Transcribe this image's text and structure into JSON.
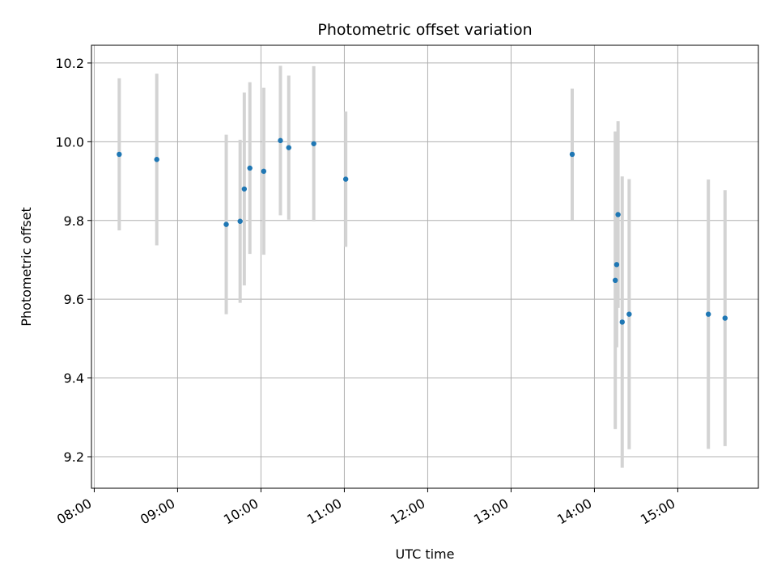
{
  "chart_data": {
    "type": "scatter",
    "title": "Photometric offset variation",
    "xlabel": "UTC time",
    "ylabel": "Photometric offset",
    "x_ticks": [
      "08:00",
      "09:00",
      "10:00",
      "11:00",
      "12:00",
      "13:00",
      "14:00",
      "15:00"
    ],
    "y_ticks": [
      9.2,
      9.4,
      9.6,
      9.8,
      10.0,
      10.2
    ],
    "y_tick_labels": [
      "9.2",
      "9.4",
      "9.6",
      "9.8",
      "10.0",
      "10.2"
    ],
    "xlim": [
      "07:58",
      "15:58"
    ],
    "ylim": [
      9.12,
      10.245
    ],
    "grid": true,
    "marker_color": "#1f77b4",
    "errorbar_color": "#d3d3d3",
    "points": [
      {
        "x": "08:18",
        "y": 9.968,
        "err": 0.193
      },
      {
        "x": "08:45",
        "y": 9.955,
        "err": 0.218
      },
      {
        "x": "09:35",
        "y": 9.79,
        "err": 0.228
      },
      {
        "x": "09:45",
        "y": 9.798,
        "err": 0.207
      },
      {
        "x": "09:48",
        "y": 9.88,
        "err": 0.245
      },
      {
        "x": "09:52",
        "y": 9.933,
        "err": 0.218
      },
      {
        "x": "10:02",
        "y": 9.925,
        "err": 0.212
      },
      {
        "x": "10:14",
        "y": 10.003,
        "err": 0.19
      },
      {
        "x": "10:20",
        "y": 9.985,
        "err": 0.183
      },
      {
        "x": "10:38",
        "y": 9.995,
        "err": 0.197
      },
      {
        "x": "11:01",
        "y": 9.905,
        "err": 0.172
      },
      {
        "x": "13:44",
        "y": 9.968,
        "err": 0.167
      },
      {
        "x": "14:15",
        "y": 9.648,
        "err": 0.378
      },
      {
        "x": "14:16",
        "y": 9.688,
        "err": 0.21
      },
      {
        "x": "14:17",
        "y": 9.815,
        "err": 0.237
      },
      {
        "x": "14:20",
        "y": 9.542,
        "err": 0.37
      },
      {
        "x": "14:25",
        "y": 9.562,
        "err": 0.343
      },
      {
        "x": "15:22",
        "y": 9.562,
        "err": 0.342
      },
      {
        "x": "15:34",
        "y": 9.552,
        "err": 0.325
      }
    ]
  }
}
